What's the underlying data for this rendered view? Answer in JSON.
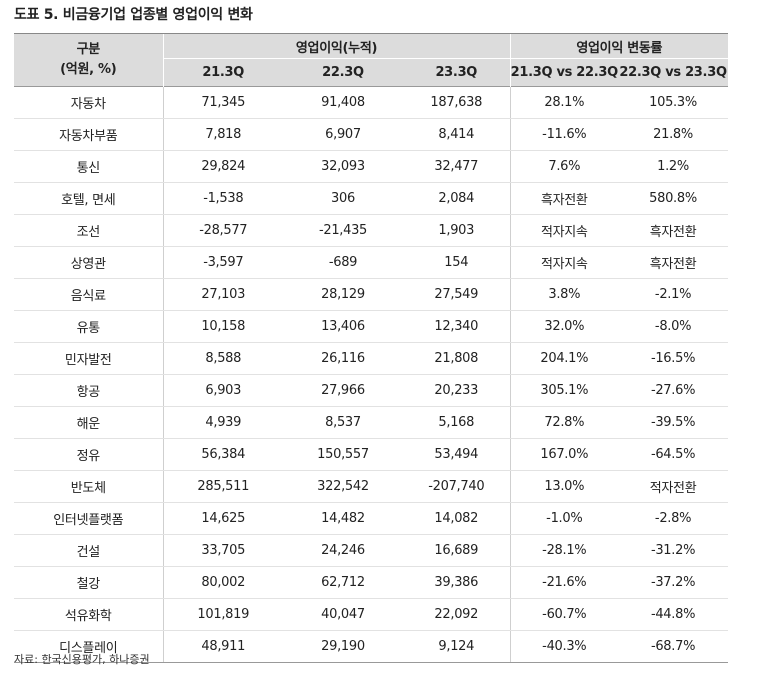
{
  "title": "도표 5. 비금융기업 업종별 영업이익 변화",
  "table": {
    "corner": [
      "구분",
      "(억원, %)"
    ],
    "groups": [
      "영업이익(누적)",
      "영업이익 변동률"
    ],
    "columns": [
      "21.3Q",
      "22.3Q",
      "23.3Q",
      "21.3Q vs 22.3Q",
      "22.3Q vs 23.3Q"
    ],
    "sections": [
      [
        [
          "자동차",
          "71,345",
          "91,408",
          "187,638",
          "28.1%",
          "105.3%"
        ],
        [
          "자동차부품",
          "7,818",
          "6,907",
          "8,414",
          "-11.6%",
          "21.8%"
        ],
        [
          "통신",
          "29,824",
          "32,093",
          "32,477",
          "7.6%",
          "1.2%"
        ],
        [
          "호텔, 면세",
          "-1,538",
          "306",
          "2,084",
          "흑자전환",
          "580.8%"
        ],
        [
          "조선",
          "-28,577",
          "-21,435",
          "1,903",
          "적자지속",
          "흑자전환"
        ],
        [
          "상영관",
          "-3,597",
          "-689",
          "154",
          "적자지속",
          "흑자전환"
        ]
      ],
      [
        [
          "음식료",
          "27,103",
          "28,129",
          "27,549",
          "3.8%",
          "-2.1%"
        ],
        [
          "유통",
          "10,158",
          "13,406",
          "12,340",
          "32.0%",
          "-8.0%"
        ],
        [
          "민자발전",
          "8,588",
          "26,116",
          "21,808",
          "204.1%",
          "-16.5%"
        ],
        [
          "항공",
          "6,903",
          "27,966",
          "20,233",
          "305.1%",
          "-27.6%"
        ],
        [
          "해운",
          "4,939",
          "8,537",
          "5,168",
          "72.8%",
          "-39.5%"
        ],
        [
          "정유",
          "56,384",
          "150,557",
          "53,494",
          "167.0%",
          "-64.5%"
        ],
        [
          "반도체",
          "285,511",
          "322,542",
          "-207,740",
          "13.0%",
          "적자전환"
        ]
      ],
      [
        [
          "인터넷플랫폼",
          "14,625",
          "14,482",
          "14,082",
          "-1.0%",
          "-2.8%"
        ],
        [
          "건설",
          "33,705",
          "24,246",
          "16,689",
          "-28.1%",
          "-31.2%"
        ],
        [
          "철강",
          "80,002",
          "62,712",
          "39,386",
          "-21.6%",
          "-37.2%"
        ],
        [
          "석유화학",
          "101,819",
          "40,047",
          "22,092",
          "-60.7%",
          "-44.8%"
        ],
        [
          "디스플레이",
          "48,911",
          "29,190",
          "9,124",
          "-40.3%",
          "-68.7%"
        ]
      ]
    ]
  },
  "source": "자료: 한국신용평가, 하나증권"
}
